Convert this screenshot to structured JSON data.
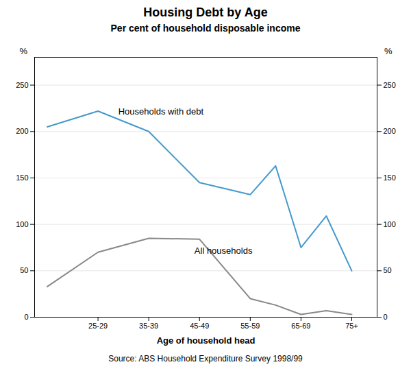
{
  "chart_data": {
    "type": "line",
    "title": "Housing Debt by Age",
    "subtitle": "Per cent of household disposable income",
    "xlabel": "Age of household head",
    "ylabel": "%",
    "y2label": "%",
    "source": "Source: ABS Household Expenditure Survey 1998/99",
    "x": [
      0,
      2,
      4,
      6,
      8,
      9,
      10,
      11,
      12
    ],
    "series": [
      {
        "name": "Households with debt",
        "color": "#4499cc",
        "values": [
          205,
          222,
          200,
          145,
          132,
          163,
          75,
          109,
          50
        ]
      },
      {
        "name": "All households",
        "color": "#888888",
        "values": [
          33,
          70,
          85,
          84,
          20,
          13,
          3,
          7,
          3
        ]
      }
    ],
    "xlim": [
      -0.5,
      13
    ],
    "xticks": [
      {
        "value": 2,
        "label": "25-29"
      },
      {
        "value": 4,
        "label": "35-39"
      },
      {
        "value": 6,
        "label": "45-49"
      },
      {
        "value": 8,
        "label": "55-59"
      },
      {
        "value": 10,
        "label": "65-69"
      },
      {
        "value": 12,
        "label": "75+"
      }
    ],
    "ylim": [
      0,
      280
    ],
    "yticks": [
      0,
      50,
      100,
      150,
      200,
      250
    ],
    "y2lim": [
      0,
      280
    ],
    "y2ticks": [
      0,
      50,
      100,
      150,
      200,
      250
    ],
    "grid": true,
    "annotations": [
      {
        "text": "Households with debt",
        "x": 2.8,
        "y": 218
      },
      {
        "text": "All households",
        "x": 5.8,
        "y": 68
      }
    ]
  }
}
